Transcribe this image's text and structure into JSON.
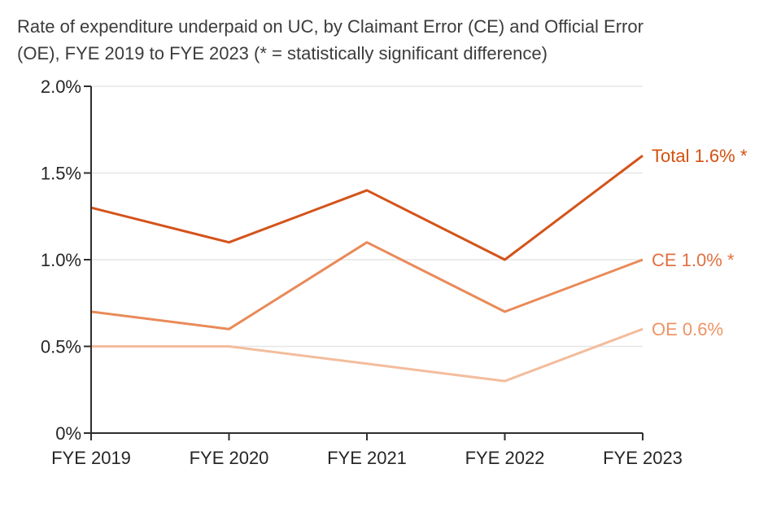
{
  "title": {
    "line1": "Rate of expenditure underpaid on UC, by Claimant Error (CE) and Official Error",
    "line2": "(OE), FYE 2019 to FYE 2023 (* = statistically significant difference)"
  },
  "colors": {
    "background": "#ffffff",
    "title_text": "#3c3c3c",
    "axis": "#2e2e2e",
    "axis_text": "#262626",
    "gridline": "#e6e6e6"
  },
  "chart_data": {
    "type": "line",
    "title": "Rate of expenditure underpaid on UC, by Claimant Error (CE) and Official Error (OE), FYE 2019 to FYE 2023 (* = statistically significant difference)",
    "categories": [
      "FYE 2019",
      "FYE 2020",
      "FYE 2021",
      "FYE 2022",
      "FYE 2023"
    ],
    "series": [
      {
        "name": "Total",
        "values": [
          1.3,
          1.1,
          1.4,
          1.0,
          1.6
        ],
        "end_label": "Total 1.6% *",
        "line_color": "#d4531a",
        "label_color": "#d4510f"
      },
      {
        "name": "CE",
        "values": [
          0.7,
          0.6,
          1.1,
          0.7,
          1.0
        ],
        "end_label": "CE 1.0% *",
        "line_color": "#e98a59",
        "label_color": "#e17041"
      },
      {
        "name": "OE",
        "values": [
          0.5,
          0.5,
          0.4,
          0.3,
          0.6
        ],
        "end_label": "OE 0.6%",
        "line_color": "#f3bd9c",
        "label_color": "#ee9466"
      }
    ],
    "xlabel": "",
    "ylabel": "",
    "y_axis": {
      "ylim": [
        0,
        2.0
      ],
      "ticks": [
        0,
        0.5,
        1.0,
        1.5,
        2.0
      ],
      "tick_labels": [
        "0%",
        "0.5%",
        "1.0%",
        "1.5%",
        "2.0%"
      ],
      "unit": "%"
    },
    "grid": "horizontal",
    "legend_position": "end-of-line-labels"
  }
}
